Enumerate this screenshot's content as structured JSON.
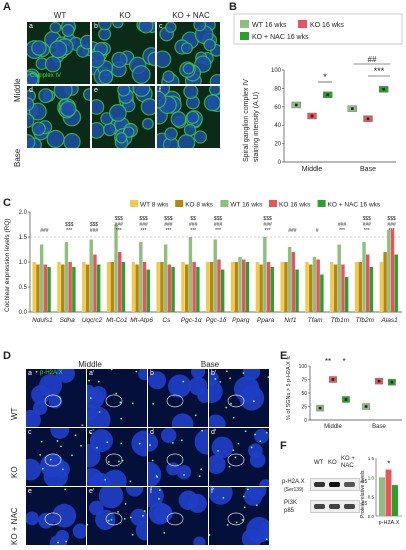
{
  "figure": {
    "letters": {
      "A": "A",
      "B": "B",
      "C": "C",
      "D": "D",
      "E": "E",
      "F": "F"
    }
  },
  "panelA": {
    "columns": [
      "WT",
      "KO",
      "KO + NAC"
    ],
    "rows": [
      "Middle",
      "Base"
    ],
    "tile_labels": [
      "a",
      "b",
      "c",
      "d",
      "e",
      "f"
    ],
    "stain": "Complex IV"
  },
  "panelD": {
    "columns": [
      "Middle",
      "Base"
    ],
    "rows": [
      "WT",
      "KO",
      "KO + NAC"
    ],
    "tile_labels": [
      "a",
      "a'",
      "b",
      "b'",
      "c",
      "c'",
      "d",
      "d'",
      "e",
      "e'",
      "f",
      "f'"
    ],
    "stain": "p-H2A.X"
  },
  "panelF": {
    "lanes": [
      "WT",
      "KO",
      "KO + NAC"
    ],
    "bands": [
      "p-H2A.X",
      "(Ser139)",
      "PI3K",
      "p85"
    ],
    "markers": [
      "-15",
      "-85"
    ]
  },
  "chart_data": [
    {
      "id": "B",
      "type": "box",
      "ylabel": "Spiral ganglion complex IV staining intensity (A.U)",
      "categories": [
        "Middle",
        "Base"
      ],
      "ylim": [
        0,
        100
      ],
      "yticks": [
        0,
        20,
        40,
        60,
        80,
        100
      ],
      "series": [
        {
          "name": "WT 16 wks",
          "color": "#8fbf7f",
          "values": [
            62,
            58
          ]
        },
        {
          "name": "KO 16 wks",
          "color": "#e8545c",
          "values": [
            50,
            47
          ]
        },
        {
          "name": "KO + NAC 16 wks",
          "color": "#2ca02c",
          "values": [
            73,
            79
          ]
        }
      ],
      "annotations": [
        {
          "category": "Middle",
          "text": "*"
        },
        {
          "category": "Base",
          "text": "***"
        },
        {
          "category": "Base",
          "text": "##"
        }
      ]
    },
    {
      "id": "C",
      "type": "bar",
      "ylabel": "Cochlear expression levels (RQ)",
      "ylim": [
        0,
        2
      ],
      "yticks": [
        "0.0",
        "0.5",
        "1.0",
        "1.5",
        "2.0"
      ],
      "categories": [
        "Ndufs1",
        "Sdha",
        "Uqcrc2",
        "Mt-Co1",
        "Mt-Atp6",
        "Cs",
        "Pgc-1α",
        "Pgc-1δ",
        "Pparg",
        "Ppara",
        "Nrf1",
        "Tfam",
        "Tfb1m",
        "Tfb2m",
        "Alas1"
      ],
      "series": [
        {
          "name": "WT 8 wks",
          "color": "#f2c94c",
          "values": [
            1.0,
            1.0,
            1.0,
            1.0,
            1.0,
            1.0,
            1.0,
            1.0,
            1.0,
            1.0,
            1.0,
            1.0,
            1.0,
            1.0,
            1.0
          ]
        },
        {
          "name": "KO 8 wks",
          "color": "#b8860b",
          "values": [
            0.95,
            0.95,
            0.95,
            1.0,
            0.95,
            1.0,
            0.95,
            1.0,
            1.0,
            0.95,
            1.0,
            0.95,
            0.95,
            1.0,
            1.2
          ]
        },
        {
          "name": "WT 16 wks",
          "color": "#8fbf7f",
          "values": [
            1.35,
            1.4,
            1.45,
            1.75,
            1.4,
            1.35,
            1.5,
            1.45,
            1.1,
            1.5,
            1.3,
            1.1,
            1.35,
            1.4,
            1.65
          ]
        },
        {
          "name": "KO 16 wks",
          "color": "#e8545c",
          "values": [
            0.95,
            1.0,
            1.15,
            1.2,
            1.0,
            0.95,
            1.0,
            1.05,
            1.05,
            1.0,
            1.2,
            1.05,
            0.95,
            1.15,
            1.65
          ]
        },
        {
          "name": "KO + NAC 16 wks",
          "color": "#2ca02c",
          "values": [
            0.9,
            0.9,
            0.95,
            1.0,
            0.85,
            0.9,
            0.9,
            0.85,
            1.0,
            0.9,
            0.85,
            0.75,
            0.7,
            0.9,
            1.15
          ]
        }
      ],
      "annotations": [
        {
          "category": "Ndufs1",
          "texts": [
            "###"
          ]
        },
        {
          "category": "Sdha",
          "texts": [
            "$$$",
            "***"
          ]
        },
        {
          "category": "Uqcrc2",
          "texts": [
            "$$$",
            "###"
          ]
        },
        {
          "category": "Mt-Co1",
          "texts": [
            "$$$",
            "###",
            "***"
          ]
        },
        {
          "category": "Mt-Atp6",
          "texts": [
            "$$$",
            "###",
            "***"
          ]
        },
        {
          "category": "Cs",
          "texts": [
            "$$$",
            "###",
            "***"
          ]
        },
        {
          "category": "Pgc-1α",
          "texts": [
            "$$",
            "###",
            "***"
          ]
        },
        {
          "category": "Pgc-1δ",
          "texts": [
            "$$$",
            "###",
            "***"
          ]
        },
        {
          "category": "Ppara",
          "texts": [
            "$$$",
            "###",
            "***"
          ]
        },
        {
          "category": "Nrf1",
          "texts": [
            "###"
          ]
        },
        {
          "category": "Tfam",
          "texts": [
            "#"
          ]
        },
        {
          "category": "Tfb1m",
          "texts": [
            "###",
            "***"
          ]
        },
        {
          "category": "Tfb2m",
          "texts": [
            "$$$",
            "###",
            "***"
          ]
        },
        {
          "category": "Alas1",
          "texts": [
            "$$$",
            "###",
            "***"
          ]
        }
      ]
    },
    {
      "id": "E",
      "type": "box",
      "ylabel": "% of SGNs > 5 p-H2A.X foci",
      "categories": [
        "Middle",
        "Base"
      ],
      "ylim": [
        0,
        100
      ],
      "yticks": [
        0,
        25,
        50,
        75,
        100
      ],
      "series": [
        {
          "name": "WT",
          "color": "#8fbf7f",
          "values": [
            22,
            25
          ]
        },
        {
          "name": "KO",
          "color": "#e8545c",
          "values": [
            75,
            72
          ]
        },
        {
          "name": "KO + NAC",
          "color": "#2ca02c",
          "values": [
            38,
            70
          ]
        }
      ],
      "annotations": [
        {
          "category": "Middle",
          "text": "**"
        },
        {
          "category": "Middle",
          "text": "*"
        }
      ]
    },
    {
      "id": "F",
      "type": "bar",
      "ylabel": "Protein relative levels",
      "categories": [
        "p-H2A.X"
      ],
      "ylim": [
        0,
        1.5
      ],
      "yticks": [
        "0.0",
        "0.5",
        "1.0",
        "1.5"
      ],
      "series": [
        {
          "name": "WT",
          "color": "#8fbf7f",
          "values": [
            1.0
          ]
        },
        {
          "name": "KO",
          "color": "#e8545c",
          "values": [
            1.2
          ]
        },
        {
          "name": "KO + NAC",
          "color": "#2ca02c",
          "values": [
            0.8
          ]
        }
      ],
      "annotations": [
        {
          "category": "p-H2A.X",
          "text": "*"
        }
      ]
    }
  ]
}
